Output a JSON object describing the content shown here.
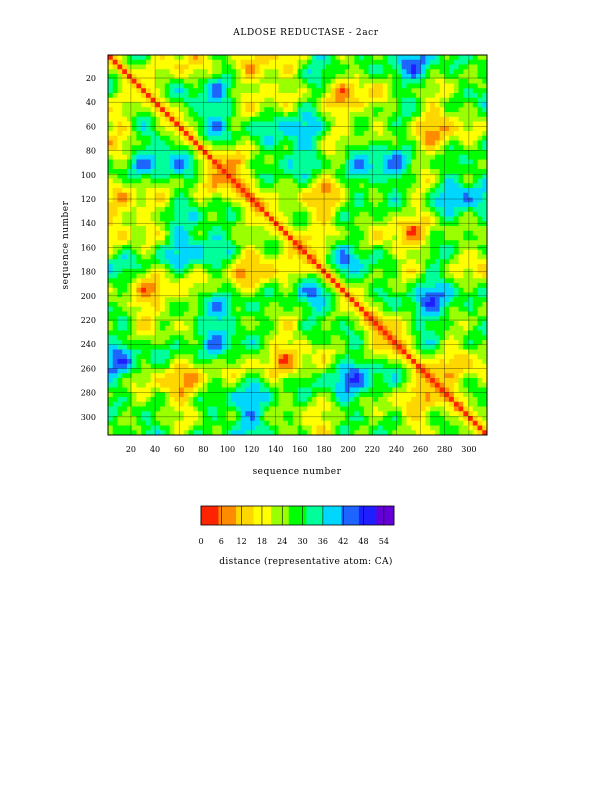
{
  "chart_data": {
    "type": "heatmap",
    "title": "ALDOSE REDUCTASE - 2acr",
    "xlabel": "sequence number",
    "ylabel": "sequence number",
    "x_ticks": [
      20,
      40,
      60,
      80,
      100,
      120,
      140,
      160,
      180,
      200,
      220,
      240,
      260,
      280,
      300
    ],
    "y_ticks": [
      20,
      40,
      60,
      80,
      100,
      120,
      140,
      160,
      180,
      200,
      220,
      240,
      260,
      280,
      300
    ],
    "xlim": [
      1,
      315
    ],
    "ylim": [
      1,
      315
    ],
    "y_inverted": true,
    "grid": true,
    "matrix": "symmetric pairwise CA-CA distance map; minimum (0) along the diagonal",
    "colorbar": {
      "label": "distance (representative atom: CA)",
      "ticks": [
        0,
        6,
        12,
        18,
        24,
        30,
        36,
        42,
        48,
        54
      ],
      "range": [
        0,
        57
      ],
      "colors": [
        "#ff2400",
        "#ff8c00",
        "#ffd700",
        "#ffff00",
        "#9aff00",
        "#00ff00",
        "#00ff9a",
        "#00d7ff",
        "#1e64ff",
        "#1e1eff",
        "#6400d7"
      ]
    }
  }
}
